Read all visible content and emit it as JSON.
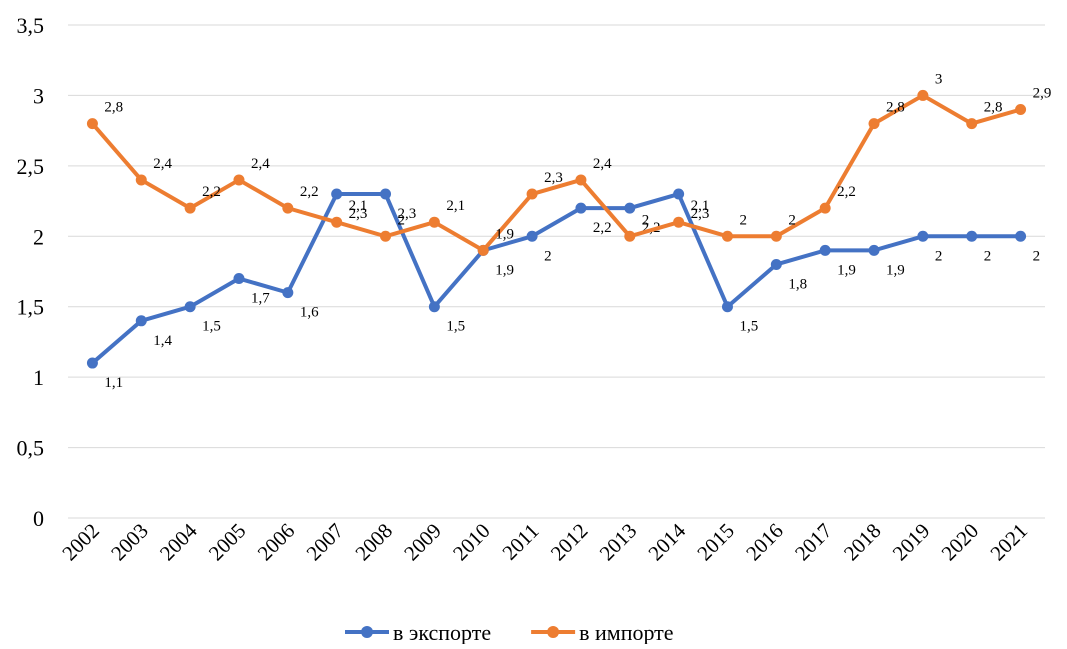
{
  "chart_data": {
    "type": "line",
    "categories": [
      "2002",
      "2003",
      "2004",
      "2005",
      "2006",
      "2007",
      "2008",
      "2009",
      "2010",
      "2011",
      "2012",
      "2013",
      "2014",
      "2015",
      "2016",
      "2017",
      "2018",
      "2019",
      "2020",
      "2021"
    ],
    "series": [
      {
        "name": "в экспорте",
        "color": "#4472c4",
        "values": [
          1.1,
          1.4,
          1.5,
          1.7,
          1.6,
          2.3,
          2.3,
          1.5,
          1.9,
          2,
          2.2,
          2.2,
          2.3,
          1.5,
          1.8,
          1.9,
          1.9,
          2,
          2,
          2
        ],
        "value_labels": [
          "1,1",
          "1,4",
          "1,5",
          "1,7",
          "1,6",
          "2,3",
          "2,3",
          "1,5",
          "1,9",
          "2",
          "2,2",
          "2,2",
          "2,3",
          "1,5",
          "1,8",
          "1,9",
          "1,9",
          "2",
          "2",
          "2"
        ]
      },
      {
        "name": "в импорте",
        "color": "#ed7d31",
        "values": [
          2.8,
          2.4,
          2.2,
          2.4,
          2.2,
          2.1,
          2,
          2.1,
          1.9,
          2.3,
          2.4,
          2,
          2.1,
          2,
          2,
          2.2,
          2.8,
          3,
          2.8,
          2.9
        ],
        "value_labels": [
          "2,8",
          "2,4",
          "2,2",
          "2,4",
          "2,2",
          "2,1",
          "2",
          "2,1",
          "1,9",
          "2,3",
          "2,4",
          "2",
          "2,1",
          "2",
          "2",
          "2,2",
          "2,8",
          "3",
          "2,8",
          "2,9"
        ]
      }
    ],
    "ylim": [
      0,
      3.5
    ],
    "yticks": [
      0,
      {
        "value": 0.5,
        "label": "0,5"
      },
      1,
      {
        "value": 1.5,
        "label": "1,5"
      },
      2,
      {
        "value": 2.5,
        "label": "2,5"
      },
      3,
      {
        "value": 3.5,
        "label": "3,5"
      }
    ],
    "grid": true,
    "legend": "bottom"
  }
}
